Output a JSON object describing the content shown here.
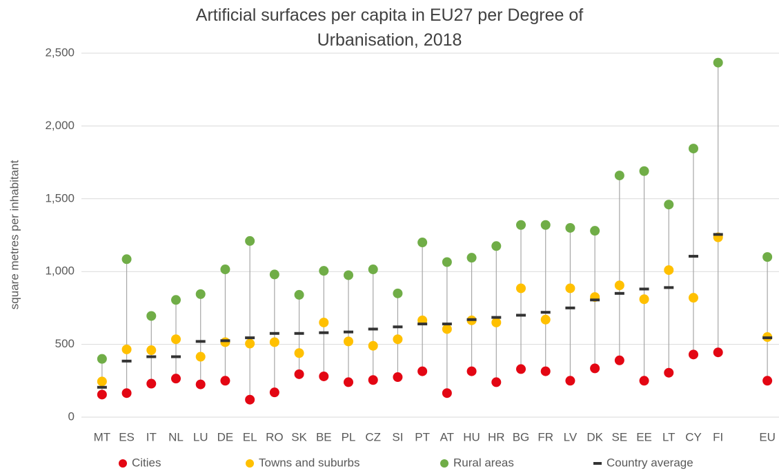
{
  "chart_data": {
    "type": "dot",
    "title": "Artificial surfaces per capita in EU27 per Degree of Urbanisation, 2018",
    "y_label": "square metres per inhabitant",
    "categories": [
      "MT",
      "ES",
      "IT",
      "NL",
      "LU",
      "DE",
      "EL",
      "RO",
      "SK",
      "BE",
      "PL",
      "CZ",
      "SI",
      "PT",
      "AT",
      "HU",
      "HR",
      "BG",
      "FR",
      "LV",
      "DK",
      "SE",
      "EE",
      "LT",
      "CY",
      "FI",
      null,
      "EU"
    ],
    "series": [
      {
        "name": "Cities",
        "color": "#e30613",
        "marker": "circle",
        "values": [
          155,
          165,
          230,
          265,
          225,
          250,
          120,
          170,
          295,
          280,
          240,
          255,
          275,
          315,
          165,
          315,
          240,
          330,
          315,
          250,
          335,
          390,
          250,
          305,
          430,
          445,
          null,
          250
        ]
      },
      {
        "name": "Towns and suburbs",
        "color": "#ffc000",
        "marker": "circle",
        "values": [
          245,
          465,
          460,
          535,
          415,
          515,
          505,
          515,
          440,
          650,
          520,
          490,
          535,
          665,
          605,
          665,
          650,
          885,
          670,
          885,
          825,
          905,
          810,
          1010,
          820,
          1235,
          null,
          550
        ]
      },
      {
        "name": "Rural areas",
        "color": "#70ad47",
        "marker": "circle",
        "values": [
          400,
          1085,
          695,
          805,
          845,
          1015,
          1210,
          980,
          840,
          1005,
          975,
          1015,
          850,
          1200,
          1065,
          1095,
          1175,
          1320,
          1320,
          1300,
          1280,
          1660,
          1690,
          1460,
          1845,
          2435,
          null,
          1100
        ]
      },
      {
        "name": "Country average",
        "color": "#333333",
        "marker": "dash",
        "values": [
          205,
          385,
          415,
          415,
          520,
          525,
          545,
          575,
          575,
          580,
          585,
          605,
          620,
          640,
          640,
          670,
          685,
          700,
          720,
          750,
          805,
          850,
          880,
          890,
          1105,
          1255,
          null,
          545
        ]
      }
    ],
    "ylim": [
      0,
      2500
    ],
    "yticks": [
      0,
      500,
      {
        "value": 1000,
        "label": "1,000"
      },
      {
        "value": 1500,
        "label": "1,500"
      },
      {
        "value": 2000,
        "label": "2,000"
      },
      {
        "value": 2500,
        "label": "2,500"
      }
    ],
    "grid": true,
    "legend": "bottom"
  }
}
